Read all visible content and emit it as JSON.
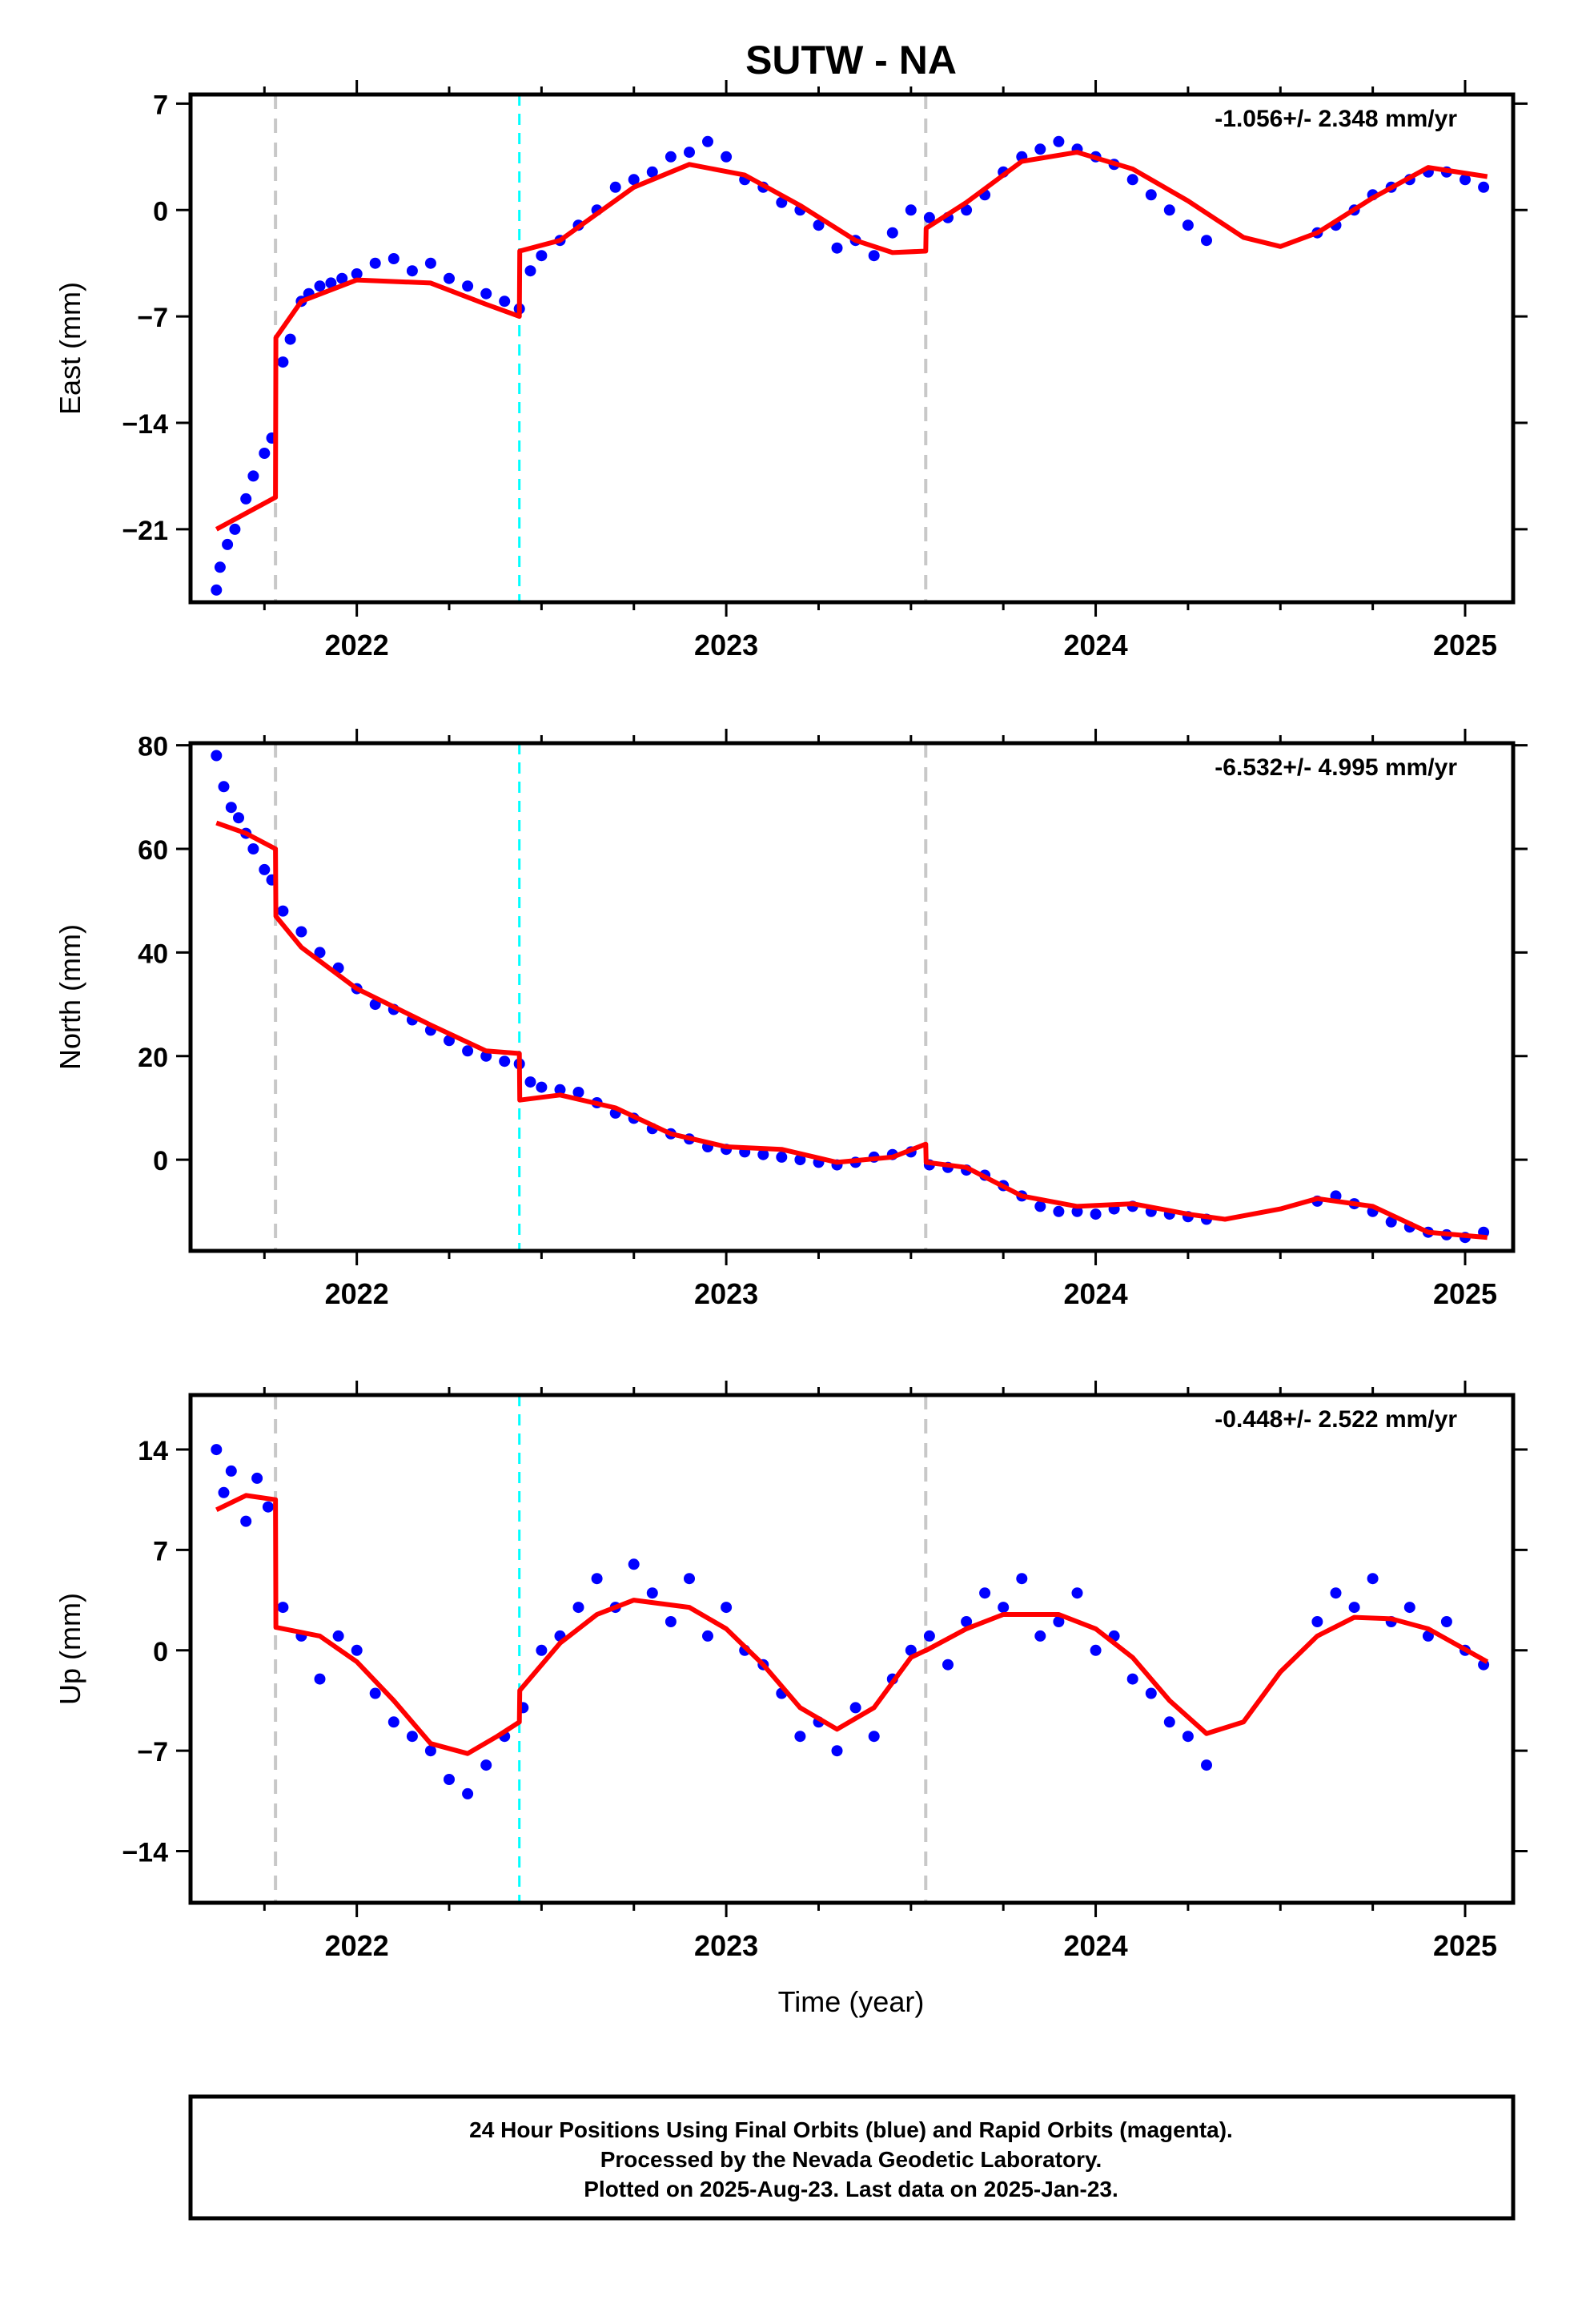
{
  "title": "SUTW - NA",
  "xlabel": "Time (year)",
  "footer": {
    "line1": "24 Hour Positions Using Final Orbits (blue) and Rapid Orbits (magenta).",
    "line2": "Processed by the Nevada Geodetic Laboratory.",
    "line3": "Plotted on 2025-Aug-23. Last data on 2025-Jan-23."
  },
  "colors": {
    "points": "#0000ff",
    "model": "#ff0000",
    "equipment_change": "#c8c8c8",
    "earthquake": "#00ffff"
  },
  "chart_data": [
    {
      "type": "scatter",
      "panel": "east",
      "ylabel": "East (mm)",
      "rate_label": "-1.056+/- 2.348 mm/yr",
      "xlim": [
        2021.55,
        2025.13
      ],
      "ylim": [
        -25.8,
        7.6
      ],
      "yticks": [
        7,
        0,
        -7,
        -14,
        -21
      ],
      "ytick_labels": [
        "7",
        "0",
        "−7",
        "−14",
        "−21"
      ],
      "xticks": [
        2022,
        2023,
        2024,
        2025
      ],
      "xtick_labels": [
        "2022",
        "2023",
        "2024",
        "2025"
      ],
      "model_line": {
        "x": [
          2021.62,
          2021.78,
          2021.781,
          2021.85,
          2022.0,
          2022.2,
          2022.35,
          2022.44,
          2022.441,
          2022.55,
          2022.75,
          2022.9,
          2023.05,
          2023.2,
          2023.35,
          2023.45,
          2023.54,
          2023.541,
          2023.65,
          2023.8,
          2023.95,
          2024.1,
          2024.25,
          2024.4,
          2024.5,
          2024.6,
          2024.75,
          2024.9,
          2025.06
        ],
        "y": [
          -21.0,
          -18.9,
          -8.4,
          -6.0,
          -4.6,
          -4.8,
          -6.2,
          -7.0,
          -2.7,
          -2.0,
          1.5,
          3.0,
          2.3,
          0.3,
          -2.0,
          -2.8,
          -2.7,
          -1.2,
          0.5,
          3.2,
          3.8,
          2.7,
          0.6,
          -1.8,
          -2.4,
          -1.5,
          0.8,
          2.8,
          2.2
        ]
      },
      "points": {
        "x": [
          2021.62,
          2021.63,
          2021.65,
          2021.67,
          2021.7,
          2021.72,
          2021.75,
          2021.77,
          2021.8,
          2021.82,
          2021.85,
          2021.87,
          2021.9,
          2021.93,
          2021.96,
          2022.0,
          2022.05,
          2022.1,
          2022.15,
          2022.2,
          2022.25,
          2022.3,
          2022.35,
          2022.4,
          2022.44,
          2022.47,
          2022.5,
          2022.55,
          2022.6,
          2022.65,
          2022.7,
          2022.75,
          2022.8,
          2022.85,
          2022.9,
          2022.95,
          2023.0,
          2023.05,
          2023.1,
          2023.15,
          2023.2,
          2023.25,
          2023.3,
          2023.35,
          2023.4,
          2023.45,
          2023.5,
          2023.55,
          2023.6,
          2023.65,
          2023.7,
          2023.75,
          2023.8,
          2023.85,
          2023.9,
          2023.95,
          2024.0,
          2024.05,
          2024.1,
          2024.15,
          2024.2,
          2024.25,
          2024.3,
          2024.6,
          2024.65,
          2024.7,
          2024.75,
          2024.8,
          2024.85,
          2024.9,
          2024.95,
          2025.0,
          2025.05
        ],
        "y": [
          -25.0,
          -23.5,
          -22.0,
          -21.0,
          -19.0,
          -17.5,
          -16.0,
          -15.0,
          -10.0,
          -8.5,
          -6.0,
          -5.5,
          -5.0,
          -4.8,
          -4.5,
          -4.2,
          -3.5,
          -3.2,
          -4.0,
          -3.5,
          -4.5,
          -5.0,
          -5.5,
          -6.0,
          -6.5,
          -4.0,
          -3.0,
          -2.0,
          -1.0,
          0.0,
          1.5,
          2.0,
          2.5,
          3.5,
          3.8,
          4.5,
          3.5,
          2.0,
          1.5,
          0.5,
          0.0,
          -1.0,
          -2.5,
          -2.0,
          -3.0,
          -1.5,
          0.0,
          -0.5,
          -0.5,
          0.0,
          1.0,
          2.5,
          3.5,
          4.0,
          4.5,
          4.0,
          3.5,
          3.0,
          2.0,
          1.0,
          0.0,
          -1.0,
          -2.0,
          -1.5,
          -1.0,
          0.0,
          1.0,
          1.5,
          2.0,
          2.5,
          2.5,
          2.0,
          1.5
        ]
      }
    },
    {
      "type": "scatter",
      "panel": "north",
      "ylabel": "North (mm)",
      "rate_label": "-6.532+/- 4.995 mm/yr",
      "xlim": [
        2021.55,
        2025.13
      ],
      "ylim": [
        -17.6,
        80.4
      ],
      "yticks": [
        80,
        60,
        40,
        20,
        0
      ],
      "ytick_labels": [
        "80",
        "60",
        "40",
        "20",
        "0"
      ],
      "xticks": [
        2022,
        2023,
        2024,
        2025
      ],
      "xtick_labels": [
        "2022",
        "2023",
        "2024",
        "2025"
      ],
      "model_line": {
        "x": [
          2021.62,
          2021.7,
          2021.78,
          2021.781,
          2021.85,
          2022.0,
          2022.2,
          2022.35,
          2022.44,
          2022.441,
          2022.55,
          2022.7,
          2022.85,
          2023.0,
          2023.15,
          2023.3,
          2023.45,
          2023.54,
          2023.541,
          2023.65,
          2023.8,
          2023.95,
          2024.1,
          2024.25,
          2024.35,
          2024.5,
          2024.6,
          2024.75,
          2024.9,
          2025.06
        ],
        "y": [
          65.0,
          63.0,
          60.0,
          47.0,
          41.0,
          33.0,
          26.0,
          21.0,
          20.5,
          11.5,
          12.5,
          10.0,
          5.0,
          2.5,
          2.0,
          -0.5,
          0.5,
          3.0,
          -0.5,
          -1.5,
          -7.0,
          -9.0,
          -8.5,
          -10.5,
          -11.5,
          -9.5,
          -7.5,
          -9.0,
          -14.0,
          -15.0
        ]
      },
      "points": {
        "x": [
          2021.62,
          2021.64,
          2021.66,
          2021.68,
          2021.7,
          2021.72,
          2021.75,
          2021.77,
          2021.8,
          2021.85,
          2021.9,
          2021.95,
          2022.0,
          2022.05,
          2022.1,
          2022.15,
          2022.2,
          2022.25,
          2022.3,
          2022.35,
          2022.4,
          2022.44,
          2022.47,
          2022.5,
          2022.55,
          2022.6,
          2022.65,
          2022.7,
          2022.75,
          2022.8,
          2022.85,
          2022.9,
          2022.95,
          2023.0,
          2023.05,
          2023.1,
          2023.15,
          2023.2,
          2023.25,
          2023.3,
          2023.35,
          2023.4,
          2023.45,
          2023.5,
          2023.55,
          2023.6,
          2023.65,
          2023.7,
          2023.75,
          2023.8,
          2023.85,
          2023.9,
          2023.95,
          2024.0,
          2024.05,
          2024.1,
          2024.15,
          2024.2,
          2024.25,
          2024.3,
          2024.6,
          2024.65,
          2024.7,
          2024.75,
          2024.8,
          2024.85,
          2024.9,
          2024.95,
          2025.0,
          2025.05
        ],
        "y": [
          78.0,
          72.0,
          68.0,
          66.0,
          63.0,
          60.0,
          56.0,
          54.0,
          48.0,
          44.0,
          40.0,
          37.0,
          33.0,
          30.0,
          29.0,
          27.0,
          25.0,
          23.0,
          21.0,
          20.0,
          19.0,
          18.5,
          15.0,
          14.0,
          13.5,
          13.0,
          11.0,
          9.0,
          8.0,
          6.0,
          5.0,
          4.0,
          2.5,
          2.0,
          1.5,
          1.0,
          0.5,
          0.0,
          -0.5,
          -1.0,
          -0.5,
          0.5,
          1.0,
          1.5,
          -1.0,
          -1.5,
          -2.0,
          -3.0,
          -5.0,
          -7.0,
          -9.0,
          -10.0,
          -10.0,
          -10.5,
          -9.5,
          -9.0,
          -10.0,
          -10.5,
          -11.0,
          -11.5,
          -8.0,
          -7.0,
          -8.5,
          -10.0,
          -12.0,
          -13.0,
          -14.0,
          -14.5,
          -15.0,
          -14.0
        ]
      }
    },
    {
      "type": "scatter",
      "panel": "up",
      "ylabel": "Up (mm)",
      "rate_label": "-0.448+/- 2.522 mm/yr",
      "xlim": [
        2021.55,
        2025.13
      ],
      "ylim": [
        -17.6,
        17.8
      ],
      "yticks": [
        14,
        7,
        0,
        -7,
        -14
      ],
      "ytick_labels": [
        "14",
        "7",
        "0",
        "−7",
        "−14"
      ],
      "xticks": [
        2022,
        2023,
        2024,
        2025
      ],
      "xtick_labels": [
        "2022",
        "2023",
        "2024",
        "2025"
      ],
      "model_line": {
        "x": [
          2021.62,
          2021.7,
          2021.78,
          2021.781,
          2021.9,
          2022.0,
          2022.1,
          2022.2,
          2022.3,
          2022.38,
          2022.44,
          2022.441,
          2022.55,
          2022.65,
          2022.75,
          2022.9,
          2023.0,
          2023.1,
          2023.2,
          2023.3,
          2023.4,
          2023.5,
          2023.54,
          2023.541,
          2023.65,
          2023.75,
          2023.9,
          2024.0,
          2024.1,
          2024.2,
          2024.3,
          2024.4,
          2024.5,
          2024.6,
          2024.7,
          2024.8,
          2024.9,
          2025.06
        ],
        "y": [
          9.8,
          10.8,
          10.5,
          1.6,
          1.0,
          -0.8,
          -3.5,
          -6.5,
          -7.2,
          -6.0,
          -5.0,
          -2.8,
          0.5,
          2.5,
          3.5,
          3.0,
          1.5,
          -1.0,
          -4.0,
          -5.5,
          -4.0,
          -0.5,
          0.0,
          0.0,
          1.5,
          2.5,
          2.5,
          1.5,
          -0.5,
          -3.5,
          -5.8,
          -5.0,
          -1.5,
          1.0,
          2.3,
          2.2,
          1.5,
          -0.8
        ]
      },
      "points": {
        "x": [
          2021.62,
          2021.64,
          2021.66,
          2021.7,
          2021.73,
          2021.76,
          2021.8,
          2021.85,
          2021.9,
          2021.95,
          2022.0,
          2022.05,
          2022.1,
          2022.15,
          2022.2,
          2022.25,
          2022.3,
          2022.35,
          2022.4,
          2022.45,
          2022.5,
          2022.55,
          2022.6,
          2022.65,
          2022.7,
          2022.75,
          2022.8,
          2022.85,
          2022.9,
          2022.95,
          2023.0,
          2023.05,
          2023.1,
          2023.15,
          2023.2,
          2023.25,
          2023.3,
          2023.35,
          2023.4,
          2023.45,
          2023.5,
          2023.55,
          2023.6,
          2023.65,
          2023.7,
          2023.75,
          2023.8,
          2023.85,
          2023.9,
          2023.95,
          2024.0,
          2024.05,
          2024.1,
          2024.15,
          2024.2,
          2024.25,
          2024.3,
          2024.6,
          2024.65,
          2024.7,
          2024.75,
          2024.8,
          2024.85,
          2024.9,
          2024.95,
          2025.0,
          2025.05
        ],
        "y": [
          14.0,
          11.0,
          12.5,
          9.0,
          12.0,
          10.0,
          3.0,
          1.0,
          -2.0,
          1.0,
          0.0,
          -3.0,
          -5.0,
          -6.0,
          -7.0,
          -9.0,
          -10.0,
          -8.0,
          -6.0,
          -4.0,
          0.0,
          1.0,
          3.0,
          5.0,
          3.0,
          6.0,
          4.0,
          2.0,
          5.0,
          1.0,
          3.0,
          0.0,
          -1.0,
          -3.0,
          -6.0,
          -5.0,
          -7.0,
          -4.0,
          -6.0,
          -2.0,
          0.0,
          1.0,
          -1.0,
          2.0,
          4.0,
          3.0,
          5.0,
          1.0,
          2.0,
          4.0,
          0.0,
          1.0,
          -2.0,
          -3.0,
          -5.0,
          -6.0,
          -8.0,
          2.0,
          4.0,
          3.0,
          5.0,
          2.0,
          3.0,
          1.0,
          2.0,
          0.0,
          -1.0
        ]
      }
    }
  ]
}
